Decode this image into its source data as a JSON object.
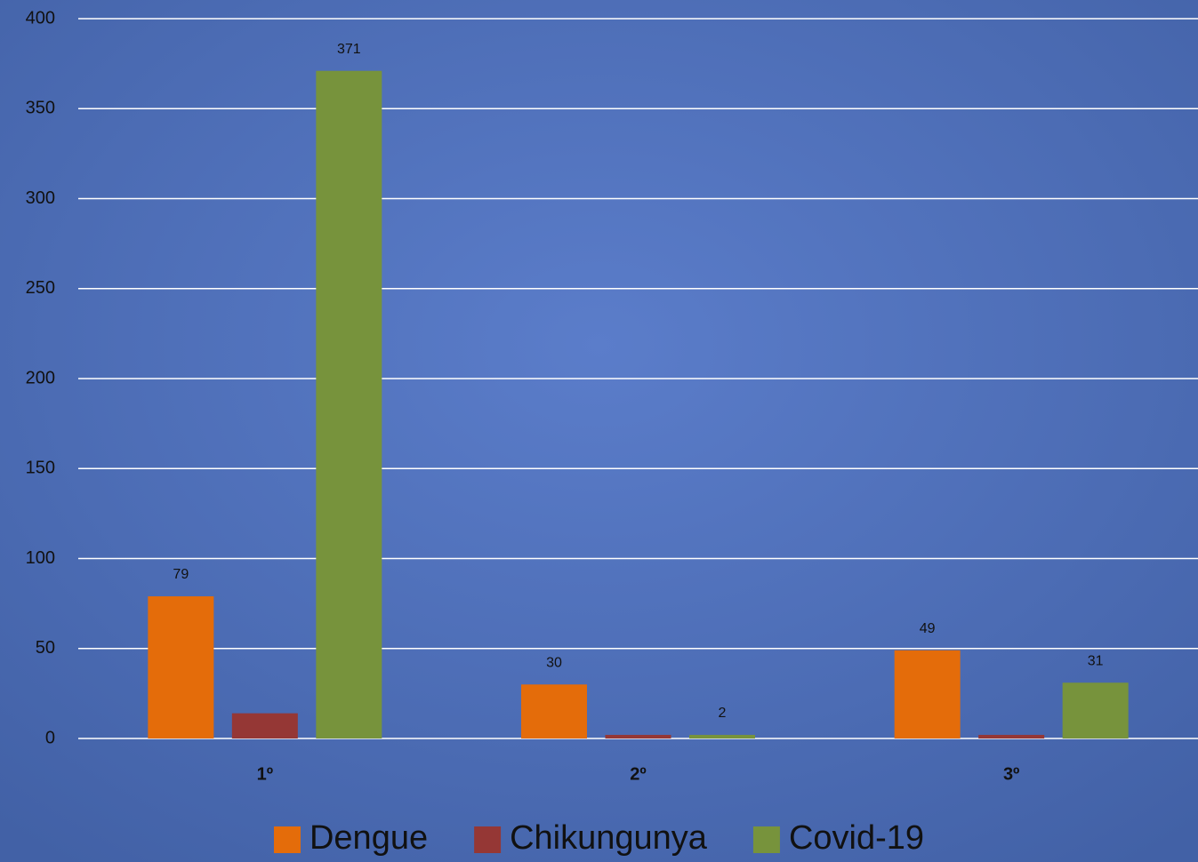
{
  "chart_data": {
    "type": "bar",
    "categories": [
      "1º",
      "2º",
      "3º"
    ],
    "series": [
      {
        "name": "Dengue",
        "color": "#e46c0a",
        "values": [
          79,
          30,
          49
        ],
        "data_labels": true
      },
      {
        "name": "Chikungunya",
        "color": "#953735",
        "values": [
          14,
          2,
          2
        ],
        "data_labels": false
      },
      {
        "name": "Covid-19",
        "color": "#77933c",
        "values": [
          371,
          2,
          31
        ],
        "data_labels": true
      }
    ],
    "ylim": [
      0,
      400
    ],
    "yticks": [
      0,
      50,
      100,
      150,
      200,
      250,
      300,
      350,
      400
    ],
    "grid": true,
    "legend": "bottom"
  }
}
